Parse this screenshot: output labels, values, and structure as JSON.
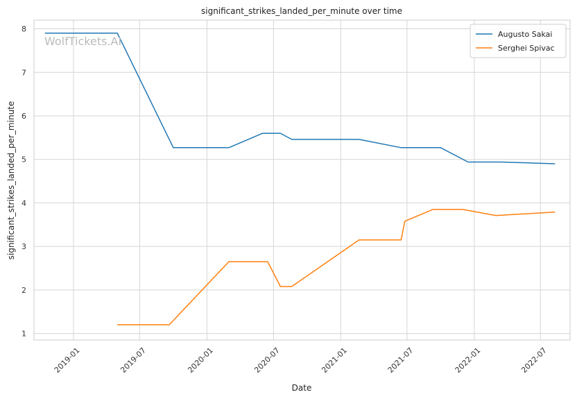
{
  "chart_data": {
    "type": "line",
    "title": "significant_strikes_landed_per_minute over time",
    "xlabel": "Date",
    "ylabel": "significant_strikes_landed_per_minute",
    "watermark": "WolfTickets.AI",
    "x_type": "date",
    "xlim": [
      "2018-09-15",
      "2022-09-20"
    ],
    "ylim": [
      0.85,
      8.2
    ],
    "x_ticks": [
      "2019-01-01",
      "2019-07-01",
      "2020-01-01",
      "2020-07-01",
      "2021-01-01",
      "2021-07-01",
      "2022-01-01",
      "2022-07-01"
    ],
    "x_tick_labels": [
      "2019-01",
      "2019-07",
      "2020-01",
      "2020-07",
      "2021-01",
      "2021-07",
      "2022-01",
      "2022-07"
    ],
    "y_ticks": [
      1,
      2,
      3,
      4,
      5,
      6,
      7,
      8
    ],
    "y_tick_labels": [
      "1",
      "2",
      "3",
      "4",
      "5",
      "6",
      "7",
      "8"
    ],
    "grid": true,
    "legend_position": "top-right",
    "series": [
      {
        "name": "Augusto Sakai",
        "color": "#1f77b4",
        "x": [
          "2018-10-15",
          "2019-05-01",
          "2019-10-01",
          "2020-03-01",
          "2020-06-01",
          "2020-07-20",
          "2020-08-20",
          "2021-02-20",
          "2021-06-15",
          "2021-10-01",
          "2021-12-15",
          "2022-03-15",
          "2022-08-10"
        ],
        "y": [
          7.9,
          7.9,
          5.27,
          5.27,
          5.6,
          5.6,
          5.46,
          5.46,
          5.27,
          5.27,
          4.94,
          4.94,
          4.9
        ]
      },
      {
        "name": "Serghei Spivac",
        "color": "#ff7f0e",
        "x": [
          "2019-05-01",
          "2019-09-20",
          "2020-03-01",
          "2020-06-15",
          "2020-07-20",
          "2020-08-20",
          "2021-02-20",
          "2021-06-15",
          "2021-06-25",
          "2021-09-10",
          "2021-11-30",
          "2022-03-01",
          "2022-08-10"
        ],
        "y": [
          1.2,
          1.2,
          2.65,
          2.65,
          2.08,
          2.08,
          3.15,
          3.15,
          3.58,
          3.85,
          3.85,
          3.71,
          3.79
        ]
      }
    ]
  }
}
